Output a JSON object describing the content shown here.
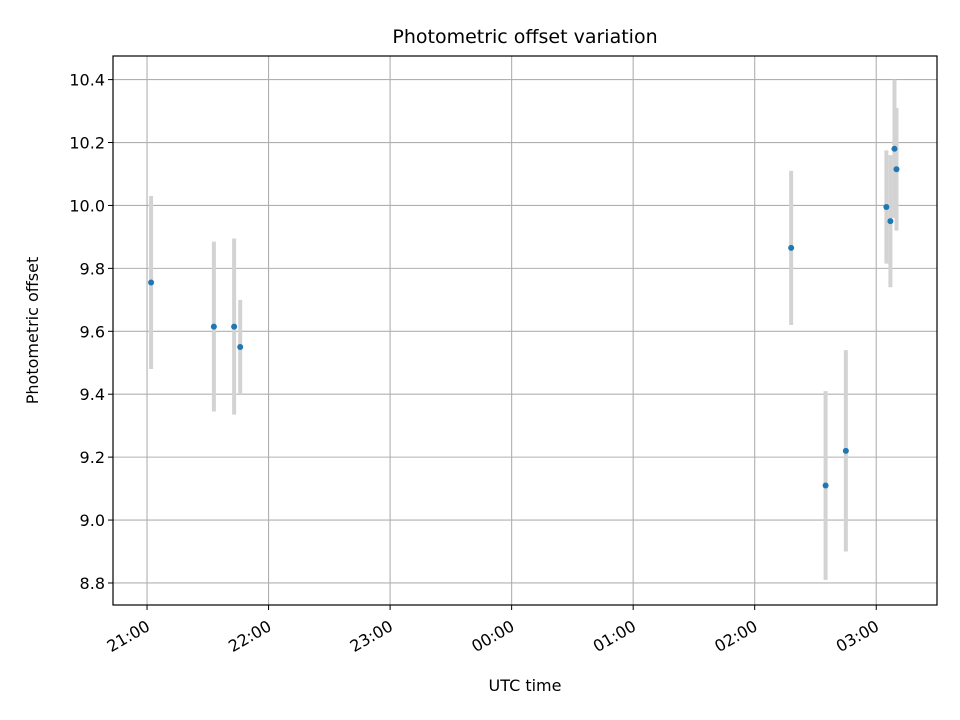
{
  "chart_data": {
    "type": "scatter",
    "title": "Photometric offset variation",
    "xlabel": "UTC time",
    "ylabel": "Photometric offset",
    "x_ticks": [
      "21:00",
      "22:00",
      "23:00",
      "00:00",
      "01:00",
      "02:00",
      "03:00"
    ],
    "y_ticks": [
      "8.8",
      "9.0",
      "9.2",
      "9.4",
      "9.6",
      "9.8",
      "10.0",
      "10.2",
      "10.4"
    ],
    "xlim_hours": [
      20.72,
      27.5
    ],
    "ylim": [
      8.73,
      10.475
    ],
    "grid": true,
    "colors": {
      "point": "#1f77b4",
      "errorbar": "#d3d3d3",
      "grid": "#b0b0b0"
    },
    "points": [
      {
        "time": "21:02",
        "y": 9.755,
        "err": 0.275
      },
      {
        "time": "21:33",
        "y": 9.615,
        "err": 0.27
      },
      {
        "time": "21:43",
        "y": 9.615,
        "err": 0.28
      },
      {
        "time": "21:46",
        "y": 9.55,
        "err": 0.15
      },
      {
        "time": "02:18",
        "y": 9.865,
        "err": 0.245
      },
      {
        "time": "02:35",
        "y": 9.11,
        "err": 0.3
      },
      {
        "time": "02:45",
        "y": 9.22,
        "err": 0.32
      },
      {
        "time": "03:05",
        "y": 9.995,
        "err": 0.18
      },
      {
        "time": "03:07",
        "y": 9.95,
        "err": 0.21
      },
      {
        "time": "03:09",
        "y": 10.18,
        "err": 0.22
      },
      {
        "time": "03:10",
        "y": 10.115,
        "err": 0.195
      }
    ]
  }
}
